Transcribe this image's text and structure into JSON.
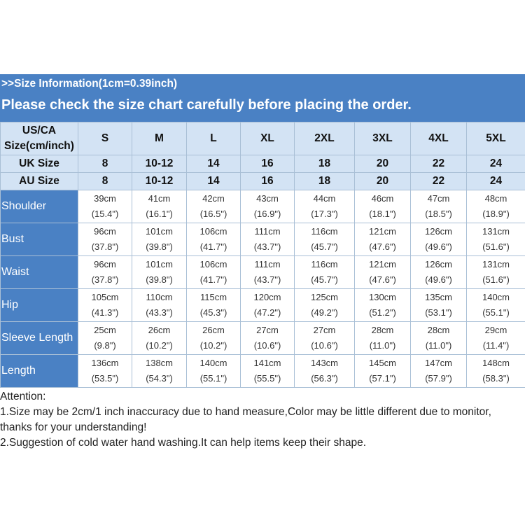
{
  "banner": {
    "line1": ">>Size  Information(1cm=0.39inch)",
    "line2": "Please check the size chart carefully before placing the order."
  },
  "table": {
    "header_label": [
      "US/CA",
      "Size(cm/inch)"
    ],
    "sizes": [
      "S",
      "M",
      "L",
      "XL",
      "2XL",
      "3XL",
      "4XL",
      "5XL"
    ],
    "uk": {
      "label": "UK Size",
      "values": [
        "8",
        "10-12",
        "14",
        "16",
        "18",
        "20",
        "22",
        "24"
      ]
    },
    "au": {
      "label": "AU Size",
      "values": [
        "8",
        "10-12",
        "14",
        "16",
        "18",
        "20",
        "22",
        "24"
      ]
    },
    "rows": [
      {
        "label": "Shoulder",
        "cm": [
          "39cm",
          "41cm",
          "42cm",
          "43cm",
          "44cm",
          "46cm",
          "47cm",
          "48cm"
        ],
        "inch": [
          "(15.4\")",
          "(16.1\")",
          "(16.5\")",
          "(16.9\")",
          "(17.3\")",
          "(18.1\")",
          "(18.5\")",
          "(18.9\")"
        ]
      },
      {
        "label": "Bust",
        "cm": [
          "96cm",
          "101cm",
          "106cm",
          "111cm",
          "116cm",
          "121cm",
          "126cm",
          "131cm"
        ],
        "inch": [
          "(37.8\")",
          "(39.8\")",
          "(41.7\")",
          "(43.7\")",
          "(45.7\")",
          "(47.6\")",
          "(49.6\")",
          "(51.6\")"
        ]
      },
      {
        "label": "Waist",
        "cm": [
          "96cm",
          "101cm",
          "106cm",
          "111cm",
          "116cm",
          "121cm",
          "126cm",
          "131cm"
        ],
        "inch": [
          "(37.8\")",
          "(39.8\")",
          "(41.7\")",
          "(43.7\")",
          "(45.7\")",
          "(47.6\")",
          "(49.6\")",
          "(51.6\")"
        ]
      },
      {
        "label": "Hip",
        "cm": [
          "105cm",
          "110cm",
          "115cm",
          "120cm",
          "125cm",
          "130cm",
          "135cm",
          "140cm"
        ],
        "inch": [
          "(41.3\")",
          "(43.3\")",
          "(45.3\")",
          "(47.2\")",
          "(49.2\")",
          "(51.2\")",
          "(53.1\")",
          "(55.1\")"
        ]
      },
      {
        "label": "Sleeve Length",
        "cm": [
          "25cm",
          "26cm",
          "26cm",
          "27cm",
          "27cm",
          "28cm",
          "28cm",
          "29cm"
        ],
        "inch": [
          "(9.8\")",
          "(10.2\")",
          "(10.2\")",
          "(10.6\")",
          "(10.6\")",
          "(11.0\")",
          "(11.0\")",
          "(11.4\")"
        ]
      },
      {
        "label": "Length",
        "cm": [
          "136cm",
          "138cm",
          "140cm",
          "141cm",
          "143cm",
          "145cm",
          "147cm",
          "148cm"
        ],
        "inch": [
          "(53.5\")",
          "(54.3\")",
          "(55.1\")",
          "(55.5\")",
          "(56.3\")",
          "(57.1\")",
          "(57.9\")",
          "(58.3\")"
        ]
      }
    ]
  },
  "notes": {
    "title": "Attention:",
    "line1": "1.Size may be 2cm/1 inch inaccuracy due to hand measure,Color may be little different due to monitor,",
    "line2": "thanks for your understanding!",
    "line3": "2.Suggestion of cold water hand washing.It can help items keep their shape."
  }
}
